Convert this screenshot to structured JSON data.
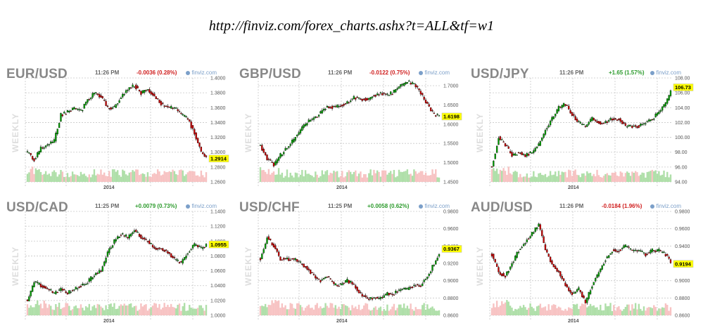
{
  "page": {
    "title": "http://finviz.com/forex_charts.ashx?t=ALL&tf=w1"
  },
  "common": {
    "period_label": "WEEKLY",
    "brand": "finviz.com",
    "year_label": "2014"
  },
  "panels": [
    {
      "pair": "EUR/USD",
      "time": "11:26 PM",
      "change": "-0.0036 (0.28%)",
      "direction": "down",
      "ticks": [
        "1.4000",
        "1.3800",
        "1.3600",
        "1.3400",
        "1.3200",
        "1.3000",
        "1.2800",
        "1.2600"
      ],
      "last": "1.2914"
    },
    {
      "pair": "GBP/USD",
      "time": "11:26 PM",
      "change": "-0.0122 (0.75%)",
      "direction": "down",
      "ticks": [
        "1.7000",
        "1.6500",
        "1.6000",
        "1.5500",
        "1.5000",
        "1.4500"
      ],
      "last": "1.6198"
    },
    {
      "pair": "USD/JPY",
      "time": "11:26 PM",
      "change": "+1.65 (1.57%)",
      "direction": "up",
      "ticks": [
        "108.00",
        "106.00",
        "104.00",
        "102.00",
        "100.00",
        "98.00",
        "96.00",
        "94.00"
      ],
      "last": "106.73"
    },
    {
      "pair": "USD/CAD",
      "time": "11:25 PM",
      "change": "+0.0079 (0.73%)",
      "direction": "up",
      "ticks": [
        "1.1400",
        "1.1200",
        "1.1000",
        "1.0800",
        "1.0600",
        "1.0400",
        "1.0200",
        "1.0000"
      ],
      "last": "1.0955"
    },
    {
      "pair": "USD/CHF",
      "time": "11:25 PM",
      "change": "+0.0058 (0.62%)",
      "direction": "up",
      "ticks": [
        "0.9800",
        "0.9600",
        "0.9400",
        "0.9200",
        "0.9000",
        "0.8800",
        "0.8600"
      ],
      "last": "0.9367"
    },
    {
      "pair": "AUD/USD",
      "time": "11:26 PM",
      "change": "-0.0184 (1.96%)",
      "direction": "down",
      "ticks": [
        "0.9800",
        "0.9600",
        "0.9400",
        "0.9200",
        "0.9000",
        "0.8800",
        "0.8600"
      ],
      "last": "0.9194"
    }
  ],
  "colors": {
    "up_candle": "#00a000",
    "down_candle": "#cc0000",
    "up_volume": "#a6dca0",
    "down_volume": "#f6bcbc",
    "grid": "#c8c8c8",
    "last_price_bg": "#ffff00",
    "axis_text": "#555555"
  },
  "chart_data": [
    {
      "type": "candlestick",
      "title": "EUR/USD",
      "x_tick_labels": [
        "2014"
      ],
      "ylim": [
        1.26,
        1.4
      ],
      "yticks": [
        1.26,
        1.28,
        1.3,
        1.32,
        1.34,
        1.36,
        1.38,
        1.4
      ],
      "last": 1.2914,
      "close_path": [
        [
          0,
          1.3
        ],
        [
          4,
          1.29
        ],
        [
          8,
          1.305
        ],
        [
          12,
          1.31
        ],
        [
          16,
          1.315
        ],
        [
          20,
          1.35
        ],
        [
          24,
          1.355
        ],
        [
          28,
          1.36
        ],
        [
          32,
          1.355
        ],
        [
          36,
          1.37
        ],
        [
          40,
          1.38
        ],
        [
          44,
          1.375
        ],
        [
          48,
          1.36
        ],
        [
          52,
          1.36
        ],
        [
          56,
          1.375
        ],
        [
          60,
          1.385
        ],
        [
          64,
          1.39
        ],
        [
          68,
          1.38
        ],
        [
          72,
          1.385
        ],
        [
          76,
          1.375
        ],
        [
          80,
          1.365
        ],
        [
          84,
          1.36
        ],
        [
          88,
          1.36
        ],
        [
          92,
          1.35
        ],
        [
          96,
          1.345
        ],
        [
          100,
          1.325
        ],
        [
          104,
          1.3
        ],
        [
          108,
          1.2914
        ]
      ]
    },
    {
      "type": "candlestick",
      "title": "GBP/USD",
      "x_tick_labels": [
        "2014"
      ],
      "ylim": [
        1.45,
        1.72
      ],
      "yticks": [
        1.45,
        1.5,
        1.55,
        1.6,
        1.65,
        1.7
      ],
      "last": 1.6198,
      "close_path": [
        [
          0,
          1.545
        ],
        [
          4,
          1.51
        ],
        [
          8,
          1.495
        ],
        [
          12,
          1.52
        ],
        [
          16,
          1.54
        ],
        [
          20,
          1.56
        ],
        [
          24,
          1.585
        ],
        [
          28,
          1.605
        ],
        [
          32,
          1.615
        ],
        [
          36,
          1.63
        ],
        [
          40,
          1.645
        ],
        [
          44,
          1.645
        ],
        [
          48,
          1.65
        ],
        [
          52,
          1.655
        ],
        [
          56,
          1.67
        ],
        [
          60,
          1.665
        ],
        [
          64,
          1.665
        ],
        [
          68,
          1.675
        ],
        [
          72,
          1.68
        ],
        [
          76,
          1.675
        ],
        [
          80,
          1.685
        ],
        [
          84,
          1.7
        ],
        [
          88,
          1.71
        ],
        [
          92,
          1.705
        ],
        [
          96,
          1.68
        ],
        [
          100,
          1.65
        ],
        [
          104,
          1.625
        ],
        [
          108,
          1.6198
        ]
      ]
    },
    {
      "type": "candlestick",
      "title": "USD/JPY",
      "x_tick_labels": [
        "2014"
      ],
      "ylim": [
        94,
        108
      ],
      "yticks": [
        94,
        96,
        98,
        100,
        102,
        104,
        106,
        108
      ],
      "last": 106.73,
      "close_path": [
        [
          0,
          96
        ],
        [
          4,
          100
        ],
        [
          8,
          99
        ],
        [
          12,
          97.5
        ],
        [
          16,
          98
        ],
        [
          20,
          97.5
        ],
        [
          24,
          98
        ],
        [
          28,
          99
        ],
        [
          32,
          101
        ],
        [
          36,
          102.5
        ],
        [
          40,
          104
        ],
        [
          44,
          104.5
        ],
        [
          48,
          103
        ],
        [
          52,
          102
        ],
        [
          56,
          101.5
        ],
        [
          60,
          102.5
        ],
        [
          64,
          102
        ],
        [
          68,
          102
        ],
        [
          72,
          102.5
        ],
        [
          76,
          102.5
        ],
        [
          80,
          101.5
        ],
        [
          84,
          101.5
        ],
        [
          88,
          101.5
        ],
        [
          92,
          102
        ],
        [
          96,
          102.5
        ],
        [
          100,
          103.5
        ],
        [
          104,
          104.5
        ],
        [
          108,
          106.73
        ]
      ]
    },
    {
      "type": "candlestick",
      "title": "USD/CAD",
      "x_tick_labels": [
        "2014"
      ],
      "ylim": [
        1.0,
        1.14
      ],
      "yticks": [
        1.0,
        1.02,
        1.04,
        1.06,
        1.08,
        1.1,
        1.12,
        1.14
      ],
      "last": 1.0955,
      "close_path": [
        [
          0,
          1.02
        ],
        [
          4,
          1.045
        ],
        [
          8,
          1.04
        ],
        [
          12,
          1.035
        ],
        [
          16,
          1.03
        ],
        [
          20,
          1.035
        ],
        [
          24,
          1.03
        ],
        [
          28,
          1.035
        ],
        [
          32,
          1.04
        ],
        [
          36,
          1.045
        ],
        [
          40,
          1.055
        ],
        [
          44,
          1.06
        ],
        [
          48,
          1.085
        ],
        [
          52,
          1.1
        ],
        [
          56,
          1.11
        ],
        [
          60,
          1.105
        ],
        [
          64,
          1.115
        ],
        [
          68,
          1.105
        ],
        [
          72,
          1.1
        ],
        [
          76,
          1.09
        ],
        [
          80,
          1.09
        ],
        [
          84,
          1.085
        ],
        [
          88,
          1.075
        ],
        [
          92,
          1.07
        ],
        [
          96,
          1.085
        ],
        [
          100,
          1.095
        ],
        [
          104,
          1.09
        ],
        [
          108,
          1.0955
        ]
      ]
    },
    {
      "type": "candlestick",
      "title": "USD/CHF",
      "x_tick_labels": [
        "2014"
      ],
      "ylim": [
        0.86,
        0.98
      ],
      "yticks": [
        0.86,
        0.88,
        0.9,
        0.92,
        0.94,
        0.96,
        0.98
      ],
      "last": 0.9367,
      "close_path": [
        [
          0,
          0.925
        ],
        [
          4,
          0.95
        ],
        [
          8,
          0.94
        ],
        [
          12,
          0.925
        ],
        [
          16,
          0.925
        ],
        [
          20,
          0.925
        ],
        [
          24,
          0.92
        ],
        [
          28,
          0.915
        ],
        [
          32,
          0.905
        ],
        [
          36,
          0.9
        ],
        [
          40,
          0.905
        ],
        [
          44,
          0.895
        ],
        [
          48,
          0.895
        ],
        [
          52,
          0.9
        ],
        [
          56,
          0.895
        ],
        [
          60,
          0.885
        ],
        [
          64,
          0.88
        ],
        [
          68,
          0.88
        ],
        [
          72,
          0.88
        ],
        [
          76,
          0.885
        ],
        [
          80,
          0.885
        ],
        [
          84,
          0.89
        ],
        [
          88,
          0.89
        ],
        [
          92,
          0.895
        ],
        [
          96,
          0.895
        ],
        [
          100,
          0.905
        ],
        [
          104,
          0.92
        ],
        [
          108,
          0.9367
        ]
      ]
    },
    {
      "type": "candlestick",
      "title": "AUD/USD",
      "x_tick_labels": [
        "2014"
      ],
      "ylim": [
        0.86,
        0.98
      ],
      "yticks": [
        0.86,
        0.88,
        0.9,
        0.92,
        0.94,
        0.96,
        0.98
      ],
      "last": 0.9194,
      "close_path": [
        [
          0,
          0.93
        ],
        [
          4,
          0.91
        ],
        [
          8,
          0.905
        ],
        [
          12,
          0.92
        ],
        [
          16,
          0.935
        ],
        [
          20,
          0.945
        ],
        [
          24,
          0.955
        ],
        [
          28,
          0.965
        ],
        [
          32,
          0.935
        ],
        [
          36,
          0.92
        ],
        [
          40,
          0.91
        ],
        [
          44,
          0.895
        ],
        [
          48,
          0.885
        ],
        [
          52,
          0.89
        ],
        [
          56,
          0.875
        ],
        [
          60,
          0.895
        ],
        [
          64,
          0.91
        ],
        [
          68,
          0.925
        ],
        [
          72,
          0.935
        ],
        [
          76,
          0.935
        ],
        [
          80,
          0.94
        ],
        [
          84,
          0.935
        ],
        [
          88,
          0.935
        ],
        [
          92,
          0.93
        ],
        [
          96,
          0.935
        ],
        [
          100,
          0.935
        ],
        [
          104,
          0.93
        ],
        [
          108,
          0.9194
        ]
      ]
    }
  ]
}
